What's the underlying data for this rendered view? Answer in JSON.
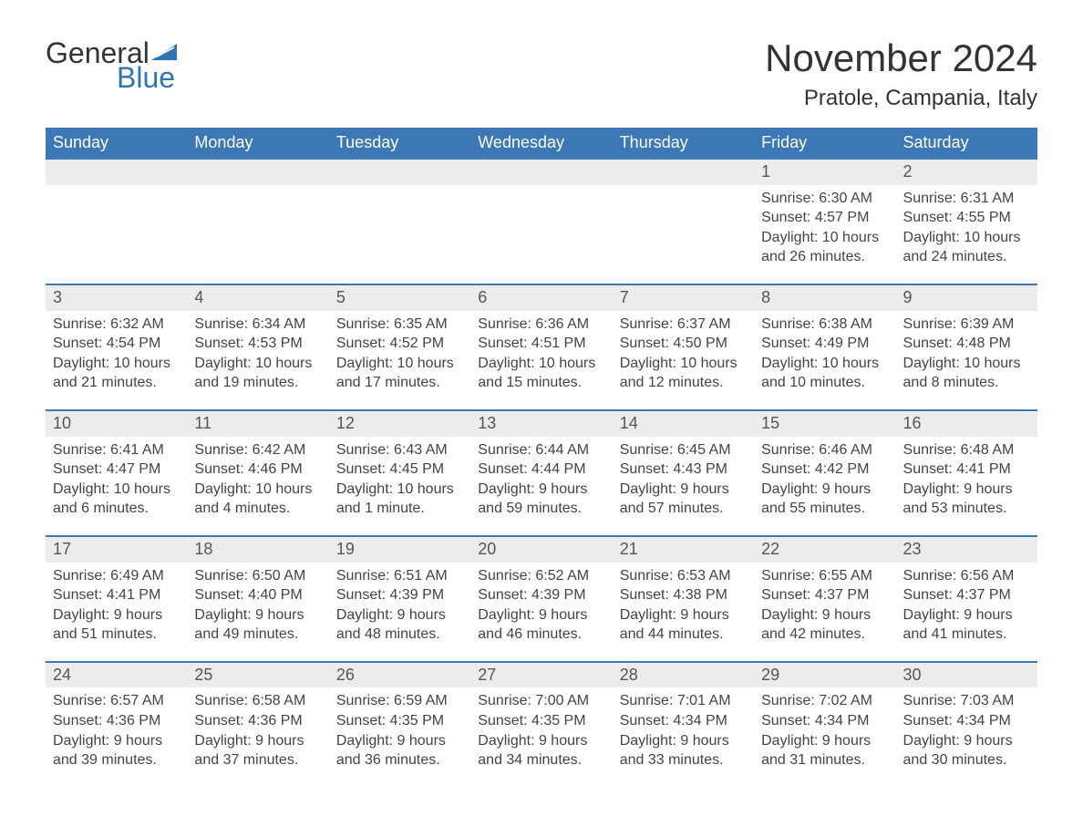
{
  "brand": {
    "word1": "General",
    "word2": "Blue",
    "sail_color": "#2f75b5",
    "text_color_dark": "#333333"
  },
  "title": "November 2024",
  "location": "Pratole, Campania, Italy",
  "colors": {
    "header_bg": "#3b78b5",
    "header_text": "#ffffff",
    "row_stripe": "#ececec",
    "week_border": "#3b78b5",
    "body_text": "#444444",
    "page_bg": "#ffffff"
  },
  "typography": {
    "title_fontsize": 42,
    "location_fontsize": 24,
    "th_fontsize": 18,
    "daynum_fontsize": 18,
    "body_fontsize": 16
  },
  "day_headers": [
    "Sunday",
    "Monday",
    "Tuesday",
    "Wednesday",
    "Thursday",
    "Friday",
    "Saturday"
  ],
  "weeks": [
    [
      null,
      null,
      null,
      null,
      null,
      {
        "n": "1",
        "sunrise": "Sunrise: 6:30 AM",
        "sunset": "Sunset: 4:57 PM",
        "daylight": "Daylight: 10 hours and 26 minutes."
      },
      {
        "n": "2",
        "sunrise": "Sunrise: 6:31 AM",
        "sunset": "Sunset: 4:55 PM",
        "daylight": "Daylight: 10 hours and 24 minutes."
      }
    ],
    [
      {
        "n": "3",
        "sunrise": "Sunrise: 6:32 AM",
        "sunset": "Sunset: 4:54 PM",
        "daylight": "Daylight: 10 hours and 21 minutes."
      },
      {
        "n": "4",
        "sunrise": "Sunrise: 6:34 AM",
        "sunset": "Sunset: 4:53 PM",
        "daylight": "Daylight: 10 hours and 19 minutes."
      },
      {
        "n": "5",
        "sunrise": "Sunrise: 6:35 AM",
        "sunset": "Sunset: 4:52 PM",
        "daylight": "Daylight: 10 hours and 17 minutes."
      },
      {
        "n": "6",
        "sunrise": "Sunrise: 6:36 AM",
        "sunset": "Sunset: 4:51 PM",
        "daylight": "Daylight: 10 hours and 15 minutes."
      },
      {
        "n": "7",
        "sunrise": "Sunrise: 6:37 AM",
        "sunset": "Sunset: 4:50 PM",
        "daylight": "Daylight: 10 hours and 12 minutes."
      },
      {
        "n": "8",
        "sunrise": "Sunrise: 6:38 AM",
        "sunset": "Sunset: 4:49 PM",
        "daylight": "Daylight: 10 hours and 10 minutes."
      },
      {
        "n": "9",
        "sunrise": "Sunrise: 6:39 AM",
        "sunset": "Sunset: 4:48 PM",
        "daylight": "Daylight: 10 hours and 8 minutes."
      }
    ],
    [
      {
        "n": "10",
        "sunrise": "Sunrise: 6:41 AM",
        "sunset": "Sunset: 4:47 PM",
        "daylight": "Daylight: 10 hours and 6 minutes."
      },
      {
        "n": "11",
        "sunrise": "Sunrise: 6:42 AM",
        "sunset": "Sunset: 4:46 PM",
        "daylight": "Daylight: 10 hours and 4 minutes."
      },
      {
        "n": "12",
        "sunrise": "Sunrise: 6:43 AM",
        "sunset": "Sunset: 4:45 PM",
        "daylight": "Daylight: 10 hours and 1 minute."
      },
      {
        "n": "13",
        "sunrise": "Sunrise: 6:44 AM",
        "sunset": "Sunset: 4:44 PM",
        "daylight": "Daylight: 9 hours and 59 minutes."
      },
      {
        "n": "14",
        "sunrise": "Sunrise: 6:45 AM",
        "sunset": "Sunset: 4:43 PM",
        "daylight": "Daylight: 9 hours and 57 minutes."
      },
      {
        "n": "15",
        "sunrise": "Sunrise: 6:46 AM",
        "sunset": "Sunset: 4:42 PM",
        "daylight": "Daylight: 9 hours and 55 minutes."
      },
      {
        "n": "16",
        "sunrise": "Sunrise: 6:48 AM",
        "sunset": "Sunset: 4:41 PM",
        "daylight": "Daylight: 9 hours and 53 minutes."
      }
    ],
    [
      {
        "n": "17",
        "sunrise": "Sunrise: 6:49 AM",
        "sunset": "Sunset: 4:41 PM",
        "daylight": "Daylight: 9 hours and 51 minutes."
      },
      {
        "n": "18",
        "sunrise": "Sunrise: 6:50 AM",
        "sunset": "Sunset: 4:40 PM",
        "daylight": "Daylight: 9 hours and 49 minutes."
      },
      {
        "n": "19",
        "sunrise": "Sunrise: 6:51 AM",
        "sunset": "Sunset: 4:39 PM",
        "daylight": "Daylight: 9 hours and 48 minutes."
      },
      {
        "n": "20",
        "sunrise": "Sunrise: 6:52 AM",
        "sunset": "Sunset: 4:39 PM",
        "daylight": "Daylight: 9 hours and 46 minutes."
      },
      {
        "n": "21",
        "sunrise": "Sunrise: 6:53 AM",
        "sunset": "Sunset: 4:38 PM",
        "daylight": "Daylight: 9 hours and 44 minutes."
      },
      {
        "n": "22",
        "sunrise": "Sunrise: 6:55 AM",
        "sunset": "Sunset: 4:37 PM",
        "daylight": "Daylight: 9 hours and 42 minutes."
      },
      {
        "n": "23",
        "sunrise": "Sunrise: 6:56 AM",
        "sunset": "Sunset: 4:37 PM",
        "daylight": "Daylight: 9 hours and 41 minutes."
      }
    ],
    [
      {
        "n": "24",
        "sunrise": "Sunrise: 6:57 AM",
        "sunset": "Sunset: 4:36 PM",
        "daylight": "Daylight: 9 hours and 39 minutes."
      },
      {
        "n": "25",
        "sunrise": "Sunrise: 6:58 AM",
        "sunset": "Sunset: 4:36 PM",
        "daylight": "Daylight: 9 hours and 37 minutes."
      },
      {
        "n": "26",
        "sunrise": "Sunrise: 6:59 AM",
        "sunset": "Sunset: 4:35 PM",
        "daylight": "Daylight: 9 hours and 36 minutes."
      },
      {
        "n": "27",
        "sunrise": "Sunrise: 7:00 AM",
        "sunset": "Sunset: 4:35 PM",
        "daylight": "Daylight: 9 hours and 34 minutes."
      },
      {
        "n": "28",
        "sunrise": "Sunrise: 7:01 AM",
        "sunset": "Sunset: 4:34 PM",
        "daylight": "Daylight: 9 hours and 33 minutes."
      },
      {
        "n": "29",
        "sunrise": "Sunrise: 7:02 AM",
        "sunset": "Sunset: 4:34 PM",
        "daylight": "Daylight: 9 hours and 31 minutes."
      },
      {
        "n": "30",
        "sunrise": "Sunrise: 7:03 AM",
        "sunset": "Sunset: 4:34 PM",
        "daylight": "Daylight: 9 hours and 30 minutes."
      }
    ]
  ]
}
